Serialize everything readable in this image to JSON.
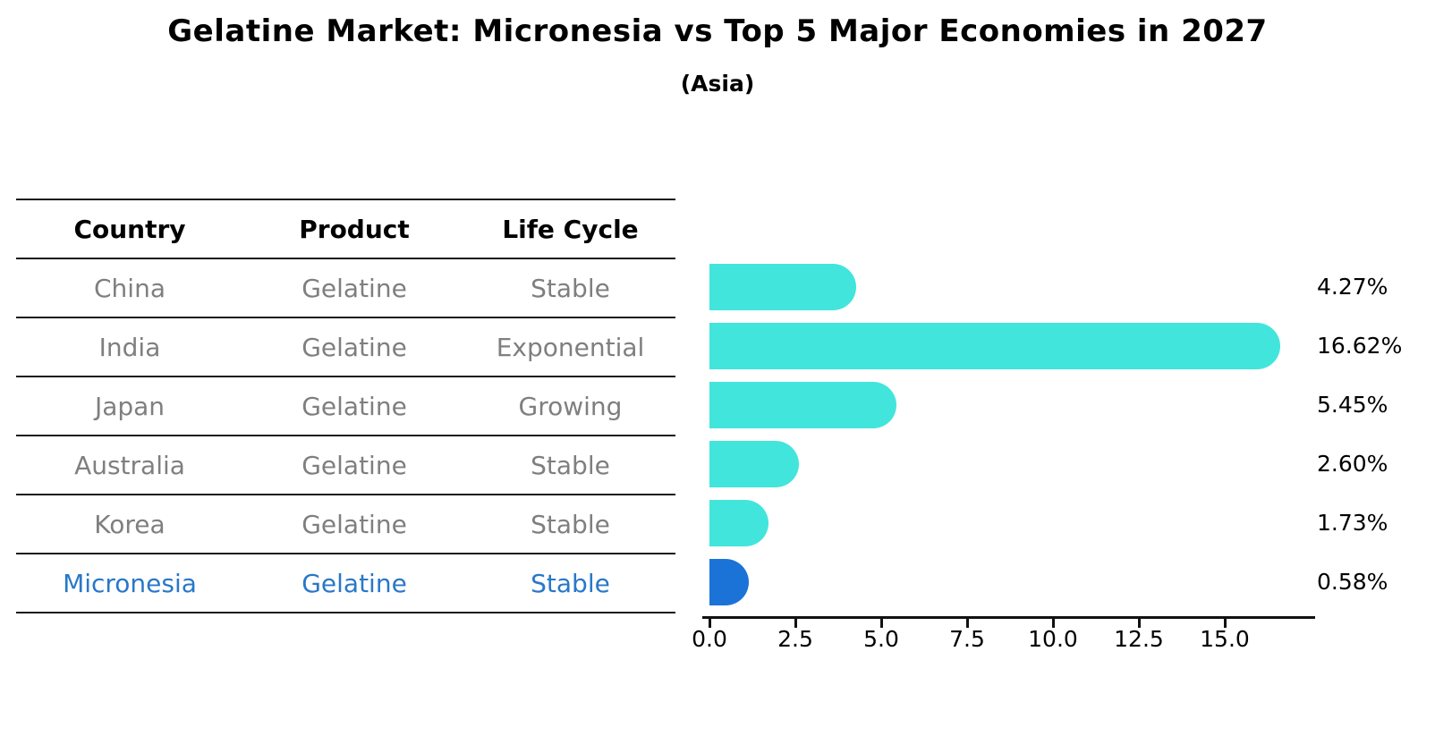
{
  "header": {
    "title": "Gelatine Market: Micronesia vs Top 5 Major Economies in 2027",
    "subtitle": "(Asia)"
  },
  "table": {
    "columns": [
      "Country",
      "Product",
      "Life Cycle"
    ],
    "rows": [
      {
        "country": "China",
        "product": "Gelatine",
        "life_cycle": "Stable",
        "value": 4.27,
        "value_label": "4.27%",
        "highlight": false
      },
      {
        "country": "India",
        "product": "Gelatine",
        "life_cycle": "Exponential",
        "value": 16.62,
        "value_label": "16.62%",
        "highlight": false
      },
      {
        "country": "Japan",
        "product": "Gelatine",
        "life_cycle": "Growing",
        "value": 5.45,
        "value_label": "5.45%",
        "highlight": false
      },
      {
        "country": "Australia",
        "product": "Gelatine",
        "life_cycle": "Stable",
        "value": 2.6,
        "value_label": "2.60%",
        "highlight": false
      },
      {
        "country": "Korea",
        "product": "Gelatine",
        "life_cycle": "Stable",
        "value": 1.73,
        "value_label": "1.73%",
        "highlight": false
      },
      {
        "country": "Micronesia",
        "product": "Gelatine",
        "life_cycle": "Stable",
        "value": 0.58,
        "value_label": "0.58%",
        "highlight": true
      }
    ]
  },
  "chart_data": {
    "type": "bar",
    "orientation": "horizontal",
    "title": "Gelatine Market: Micronesia vs Top 5 Major Economies in 2027",
    "subtitle": "(Asia)",
    "categories": [
      "China",
      "India",
      "Japan",
      "Australia",
      "Korea",
      "Micronesia"
    ],
    "values": [
      4.27,
      16.62,
      5.45,
      2.6,
      1.73,
      0.58
    ],
    "value_labels": [
      "4.27%",
      "16.62%",
      "5.45%",
      "2.60%",
      "1.73%",
      "0.58%"
    ],
    "x_ticks": [
      0.0,
      2.5,
      5.0,
      7.5,
      10.0,
      12.5,
      15.0
    ],
    "x_tick_labels": [
      "0.0",
      "2.5",
      "5.0",
      "7.5",
      "10.0",
      "12.5",
      "15.0"
    ],
    "xlim": [
      0,
      17.6
    ],
    "grid": false,
    "legend": false,
    "highlight_index": 5
  },
  "colors": {
    "bar": "#42e5dc",
    "highlight_bar": "#1b73d8",
    "highlight_text": "#2878c8",
    "table_text": "#7f7f7f",
    "header_text": "#000000",
    "axis": "#111111"
  }
}
